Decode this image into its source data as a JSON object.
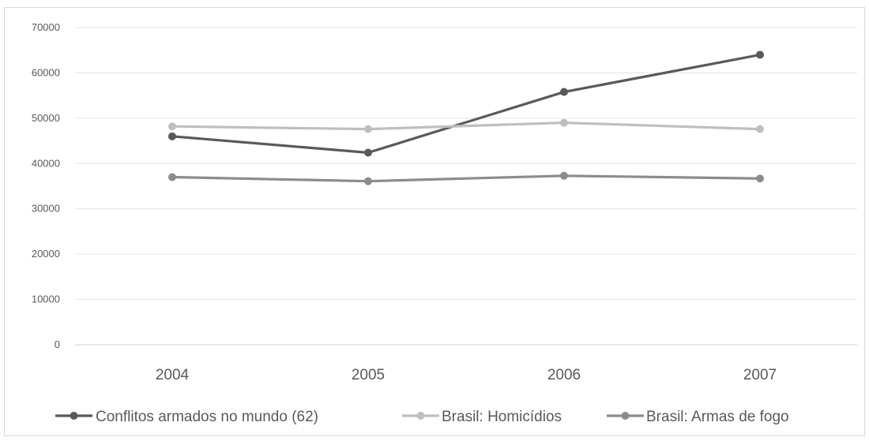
{
  "chart_data": {
    "type": "line",
    "title": "",
    "xlabel": "",
    "ylabel": "",
    "x": [
      "2004",
      "2005",
      "2006",
      "2007"
    ],
    "ylim": [
      0,
      70000
    ],
    "yticks": [
      0,
      10000,
      20000,
      30000,
      40000,
      50000,
      60000,
      70000
    ],
    "grid": true,
    "legend_position": "bottom",
    "series": [
      {
        "name": "Conflitos armados no mundo (62)",
        "values": [
          46000,
          42400,
          55800,
          64000
        ],
        "color": "#595959"
      },
      {
        "name": "Brasil: Homicídios",
        "values": [
          48200,
          47600,
          49000,
          47600
        ],
        "color": "#bfbfbf"
      },
      {
        "name": "Brasil: Armas de fogo",
        "values": [
          37000,
          36100,
          37300,
          36700
        ],
        "color": "#8c8c8c"
      }
    ]
  }
}
